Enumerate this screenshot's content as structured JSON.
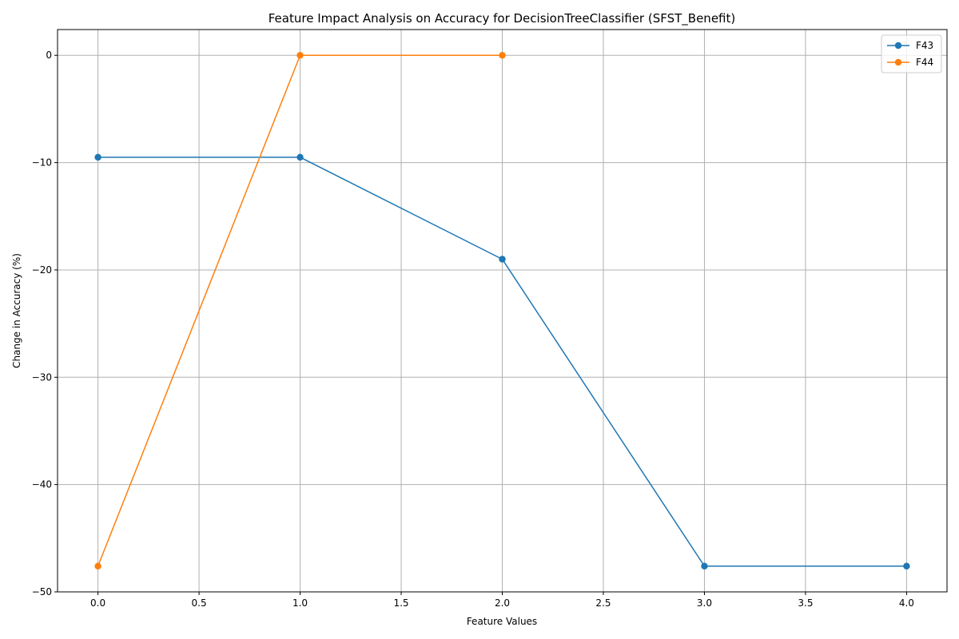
{
  "chart_data": {
    "type": "line",
    "title": "Feature Impact Analysis on Accuracy for DecisionTreeClassifier (SFST_Benefit)",
    "xlabel": "Feature Values",
    "ylabel": "Change in Accuracy (%)",
    "xlim": [
      -0.2,
      4.2
    ],
    "ylim": [
      -50,
      2.4
    ],
    "xticks": [
      0.0,
      0.5,
      1.0,
      1.5,
      2.0,
      2.5,
      3.0,
      3.5,
      4.0
    ],
    "xtick_labels": [
      "0.0",
      "0.5",
      "1.0",
      "1.5",
      "2.0",
      "2.5",
      "3.0",
      "3.5",
      "4.0"
    ],
    "yticks": [
      0,
      -10,
      -20,
      -30,
      -40,
      -50
    ],
    "ytick_labels": [
      "0",
      "−10",
      "−20",
      "−30",
      "−40",
      "−50"
    ],
    "grid": true,
    "legend_position": "top-right",
    "series": [
      {
        "name": "F43",
        "color": "#1f77b4",
        "marker": "circle",
        "x": [
          0,
          1,
          2,
          3,
          4
        ],
        "y": [
          -9.5,
          -9.5,
          -19.0,
          -47.6,
          -47.6
        ]
      },
      {
        "name": "F44",
        "color": "#ff7f0e",
        "marker": "circle",
        "x": [
          0,
          1,
          2
        ],
        "y": [
          -47.6,
          0.0,
          0.0
        ]
      }
    ]
  }
}
